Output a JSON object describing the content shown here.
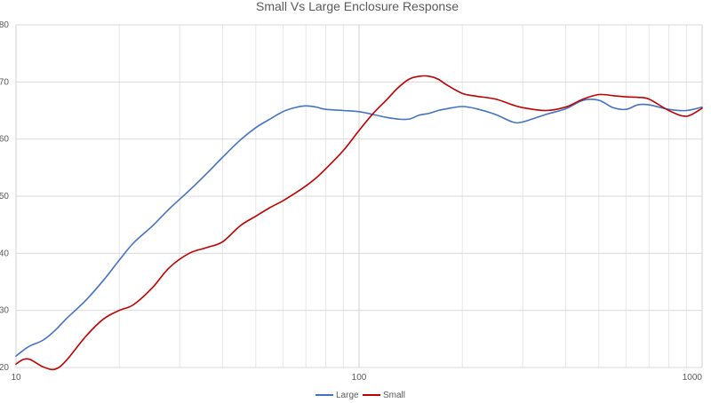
{
  "chart_data": {
    "type": "line",
    "title": "Small Vs Large Enclosure Response",
    "xlabel": "",
    "ylabel": "",
    "x_scale": "log",
    "xlim": [
      10,
      1000
    ],
    "ylim": [
      20,
      80
    ],
    "x_ticks": [
      10,
      100,
      1000
    ],
    "x_tick_labels": [
      "10",
      "100",
      "1000"
    ],
    "y_ticks": [
      20,
      30,
      40,
      50,
      60,
      70,
      80
    ],
    "y_tick_labels": [
      "20",
      "30",
      "40",
      "50",
      "60",
      "70",
      "80"
    ],
    "grid": true,
    "legend_position": "bottom",
    "series": [
      {
        "name": "Large",
        "color": "#4472c4",
        "x": [
          10,
          10.5,
          11,
          12,
          13,
          14,
          16,
          18,
          20,
          22,
          25,
          28,
          32,
          36,
          40,
          45,
          50,
          55,
          60,
          65,
          70,
          75,
          80,
          90,
          100,
          110,
          120,
          130,
          140,
          150,
          160,
          170,
          180,
          200,
          220,
          250,
          280,
          300,
          350,
          400,
          450,
          500,
          550,
          600,
          650,
          700,
          800,
          900,
          1000
        ],
        "y": [
          22,
          23,
          23.8,
          24.8,
          26.5,
          28.5,
          31.8,
          35.3,
          38.8,
          41.8,
          44.8,
          47.8,
          51.0,
          54.0,
          56.8,
          59.8,
          62.0,
          63.5,
          64.8,
          65.5,
          65.8,
          65.6,
          65.2,
          65.0,
          64.8,
          64.3,
          63.8,
          63.5,
          63.5,
          64.2,
          64.5,
          65.0,
          65.3,
          65.7,
          65.3,
          64.3,
          63.0,
          63.0,
          64.3,
          65.3,
          66.8,
          66.8,
          65.5,
          65.2,
          66.0,
          66.0,
          65.2,
          65.0,
          65.6
        ]
      },
      {
        "name": "Small",
        "color": "#c00000",
        "x": [
          10,
          10.5,
          11,
          12,
          13,
          14,
          16,
          18,
          20,
          22,
          25,
          28,
          32,
          36,
          40,
          45,
          50,
          55,
          60,
          65,
          70,
          75,
          80,
          90,
          100,
          110,
          120,
          130,
          140,
          150,
          160,
          170,
          180,
          200,
          220,
          250,
          280,
          300,
          350,
          400,
          450,
          500,
          550,
          600,
          650,
          700,
          800,
          900,
          1000
        ],
        "y": [
          20.6,
          21.4,
          21.4,
          20.1,
          19.7,
          21.2,
          25.5,
          28.5,
          30.0,
          31.0,
          34.0,
          37.5,
          40.0,
          41.0,
          42.0,
          44.8,
          46.5,
          48.0,
          49.2,
          50.5,
          51.8,
          53.2,
          54.8,
          58.0,
          61.5,
          64.5,
          66.8,
          69.0,
          70.5,
          71.0,
          71.0,
          70.5,
          69.5,
          68.0,
          67.5,
          67.0,
          66.0,
          65.5,
          65.0,
          65.6,
          67.0,
          67.8,
          67.6,
          67.4,
          67.3,
          67.0,
          65.0,
          64.0,
          65.4
        ]
      }
    ]
  }
}
